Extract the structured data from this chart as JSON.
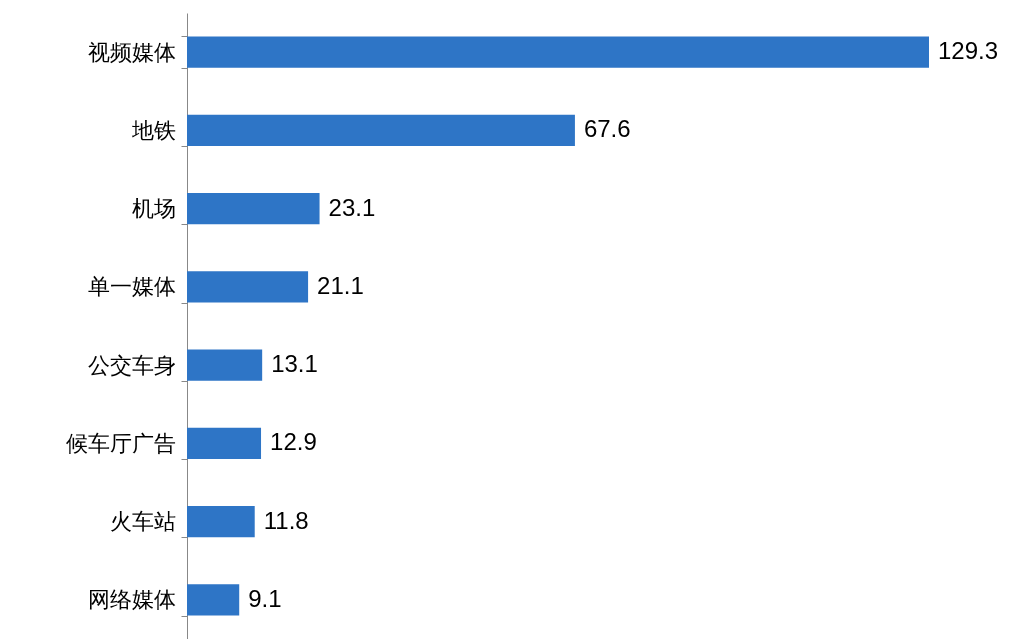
{
  "chart_data": {
    "type": "bar",
    "orientation": "horizontal",
    "categories": [
      "视频媒体",
      "地铁",
      "机场",
      "单一媒体",
      "公交车身",
      "候车厅广告",
      "火车站",
      "网络媒体"
    ],
    "values": [
      129.3,
      67.6,
      23.1,
      21.1,
      13.1,
      12.9,
      11.8,
      9.1
    ],
    "color": "#2e75c6",
    "data_labels": true
  }
}
